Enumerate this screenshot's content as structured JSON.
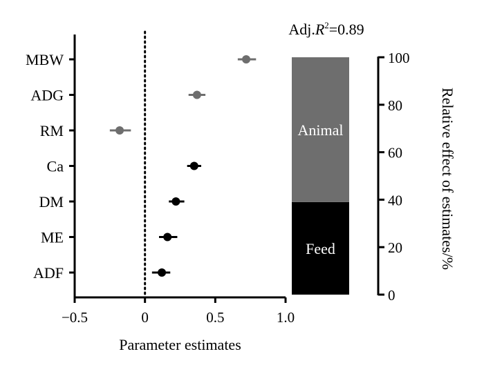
{
  "chart_data": [
    {
      "type": "scatter",
      "subtype": "coefficient-plot",
      "xlabel": "Parameter estimates",
      "xlim": [
        -0.5,
        1.0
      ],
      "xticks": [
        "−0.5",
        "0",
        "0.5",
        "1.0"
      ],
      "xtick_values": [
        -0.5,
        0,
        0.5,
        1.0
      ],
      "reference_line": {
        "x": 0,
        "style": "dotted"
      },
      "categories": [
        "MBW",
        "ADG",
        "RM",
        "Ca",
        "DM",
        "ME",
        "ADF"
      ],
      "estimates": [
        0.72,
        0.37,
        -0.18,
        0.35,
        0.22,
        0.16,
        0.12
      ],
      "ci_low": [
        0.66,
        0.31,
        -0.25,
        0.3,
        0.17,
        0.1,
        0.05
      ],
      "ci_high": [
        0.79,
        0.43,
        -0.1,
        0.4,
        0.28,
        0.23,
        0.18
      ],
      "groups": [
        "Animal",
        "Animal",
        "Animal",
        "Feed",
        "Feed",
        "Feed",
        "Feed"
      ],
      "group_colors": {
        "Animal": "#6e6e6e",
        "Feed": "#000000"
      }
    },
    {
      "type": "bar",
      "subtype": "stacked",
      "annotation": "Adj.R²=0.89",
      "annotation_parts": {
        "prefix": "Adj.",
        "italic": "R",
        "sup": "2",
        "suffix": "=0.89"
      },
      "ylabel": "Relative effect of estimates/%",
      "ylim": [
        0,
        100
      ],
      "yticks": [
        "0",
        "20",
        "40",
        "60",
        "80",
        "100"
      ],
      "ytick_values": [
        0,
        20,
        40,
        60,
        80,
        100
      ],
      "series": [
        {
          "name": "Feed",
          "value": 39,
          "color": "#000000"
        },
        {
          "name": "Animal",
          "value": 61,
          "color": "#6e6e6e"
        }
      ]
    }
  ]
}
